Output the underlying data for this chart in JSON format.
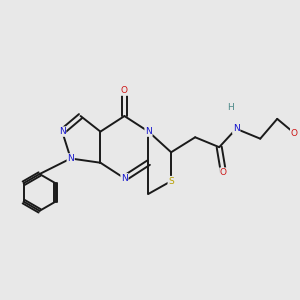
{
  "background_color": "#e8e8e8",
  "bond_color": "#1a1a1a",
  "N_color": "#1414cc",
  "O_color": "#cc1414",
  "S_color": "#b8a000",
  "H_color": "#4a8888",
  "lw": 1.4,
  "fs": 6.5,
  "xlim": [
    0,
    10.5
  ],
  "ylim": [
    0,
    10.0
  ]
}
